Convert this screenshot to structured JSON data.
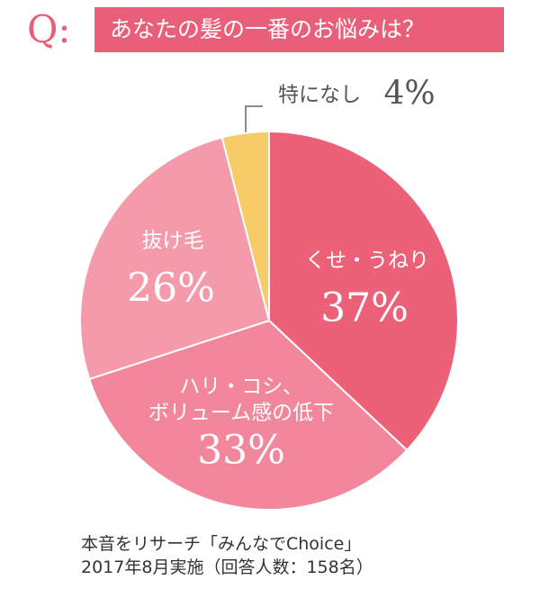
{
  "chart_data": {
    "type": "pie",
    "q_mark": "Q:",
    "title": "あなたの髪の一番のお悩みは？",
    "categories": [
      "くせ・うねり",
      "ハリ・コシ、\nボリューム感の低下",
      "抜け毛",
      "特になし"
    ],
    "values": [
      37,
      33,
      26,
      4
    ],
    "value_labels": [
      "37%",
      "33%",
      "26%",
      "4%"
    ],
    "colors": [
      "#ec6078",
      "#f2869b",
      "#f59aaa",
      "#f6cb68"
    ],
    "notes": [
      "本音をリサーチ「みんなでChoice」",
      "2017年8月実施（回答人数：158名）"
    ]
  }
}
